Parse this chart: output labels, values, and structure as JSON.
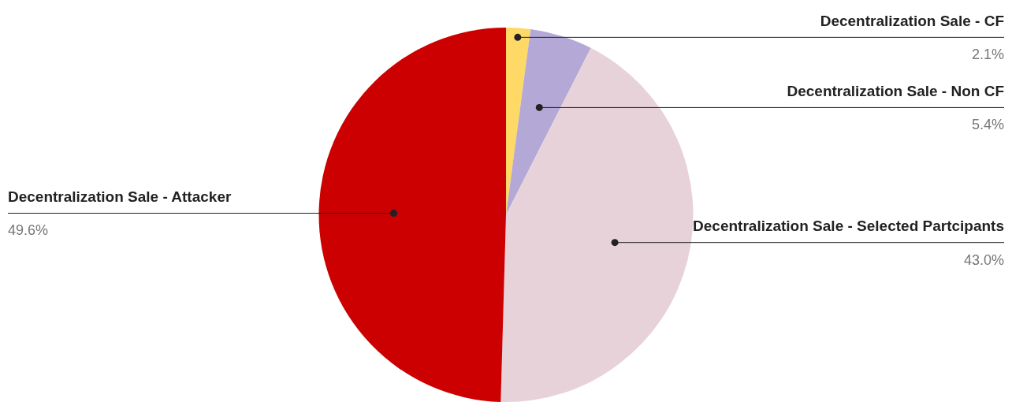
{
  "chart_data": {
    "type": "pie",
    "categories": [
      "Decentralization Sale - CF",
      "Decentralization Sale - Non CF",
      "Decentralization Sale - Selected Partcipants",
      "Decentralization Sale - Attacker"
    ],
    "values": [
      2.1,
      5.4,
      43.0,
      49.6
    ],
    "colors": [
      "#ffd966",
      "#b3a8d6",
      "#e8d2da",
      "#cc0000"
    ],
    "value_labels": [
      "2.1%",
      "5.4%",
      "43.0%",
      "49.6%"
    ],
    "legend": false
  }
}
